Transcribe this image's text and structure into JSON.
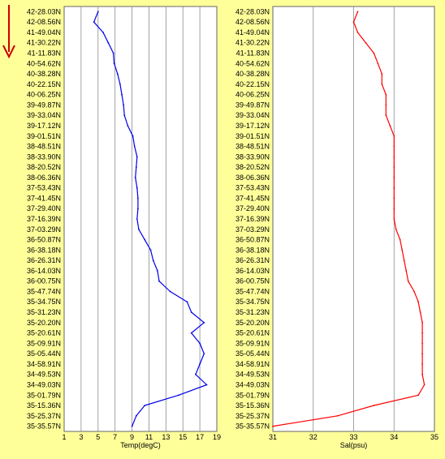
{
  "colors": {
    "background": "#ffff9a",
    "temp_line": "#0000ee",
    "sal_line": "#ff0000",
    "arrow": "#cc0000"
  },
  "arrow": {
    "icon": "down-arrow-icon"
  },
  "chart_data": [
    {
      "type": "line",
      "title": "",
      "xlabel": "Temp(degC)",
      "ylabel": "",
      "xlim": [
        1,
        19
      ],
      "xticks": [
        "1",
        "3",
        "5",
        "7",
        "9",
        "11",
        "13",
        "15",
        "17",
        "19"
      ],
      "grid": true,
      "y_categories": [
        "42-28.03N",
        "42-08.56N",
        "41-49.04N",
        "41-30.22N",
        "41-11.83N",
        "40-54.62N",
        "40-38.28N",
        "40-22.15N",
        "40-06.25N",
        "39-49.87N",
        "39-33.04N",
        "39-17.12N",
        "39-01.51N",
        "38-48.51N",
        "38-33.90N",
        "38-20.52N",
        "38-06.36N",
        "37-53.43N",
        "37-41.45N",
        "37-29.40N",
        "37-16.39N",
        "37-03.29N",
        "36-50.87N",
        "36-38.18N",
        "36-26.31N",
        "36-14.03N",
        "36-00.75N",
        "35-47.74N",
        "35-34.75N",
        "35-31.23N",
        "35-20.20N",
        "35-20.61N",
        "35-09.91N",
        "35-05.44N",
        "34-58.91N",
        "34-49.53N",
        "34-49.03N",
        "35-01.79N",
        "35-15.36N",
        "35-25.37N",
        "35-35.57N"
      ],
      "series": [
        {
          "values": [
            5.0,
            4.5,
            5.6,
            6.2,
            6.8,
            6.9,
            7.3,
            7.6,
            7.8,
            8.0,
            8.1,
            8.5,
            9.1,
            9.3,
            9.6,
            9.5,
            9.4,
            9.6,
            9.7,
            9.7,
            9.6,
            9.8,
            10.5,
            11.2,
            11.5,
            12.0,
            12.2,
            13.5,
            15.5,
            16.0,
            17.5,
            16.0,
            17.0,
            17.5,
            17.0,
            16.5,
            17.8,
            14.5,
            10.5,
            9.5,
            9.0
          ]
        }
      ]
    },
    {
      "type": "line",
      "title": "",
      "xlabel": "Sal(psu)",
      "ylabel": "",
      "xlim": [
        31,
        35
      ],
      "xticks": [
        "31",
        "32",
        "33",
        "34",
        "35"
      ],
      "grid": true,
      "y_categories": [
        "42-28.03N",
        "42-08.56N",
        "41-49.04N",
        "41-30.22N",
        "41-11.83N",
        "40-54.62N",
        "40-38.28N",
        "40-22.15N",
        "40-06.25N",
        "39-49.87N",
        "39-33.04N",
        "39-17.12N",
        "39-01.51N",
        "38-48.51N",
        "38-33.90N",
        "38-20.52N",
        "38-06.36N",
        "37-53.43N",
        "37-41.45N",
        "37-29.40N",
        "37-16.39N",
        "37-03.29N",
        "36-50.87N",
        "36-38.18N",
        "36-26.31N",
        "36-14.03N",
        "36-00.75N",
        "35-47.74N",
        "35-34.75N",
        "35-31.23N",
        "35-20.20N",
        "35-20.61N",
        "35-09.91N",
        "35-05.44N",
        "34-58.91N",
        "34-49.53N",
        "34-49.03N",
        "35-01.79N",
        "35-15.36N",
        "35-25.37N",
        "35-35.57N"
      ],
      "series": [
        {
          "values": [
            33.1,
            33.0,
            33.1,
            33.3,
            33.5,
            33.6,
            33.7,
            33.7,
            33.8,
            33.8,
            33.8,
            33.9,
            34.0,
            34.0,
            34.0,
            34.0,
            34.0,
            34.0,
            34.0,
            34.0,
            34.0,
            34.05,
            34.15,
            34.2,
            34.25,
            34.3,
            34.35,
            34.5,
            34.6,
            34.65,
            34.7,
            34.7,
            34.7,
            34.7,
            34.7,
            34.7,
            34.75,
            34.6,
            33.5,
            32.6,
            31.0
          ]
        }
      ]
    }
  ]
}
